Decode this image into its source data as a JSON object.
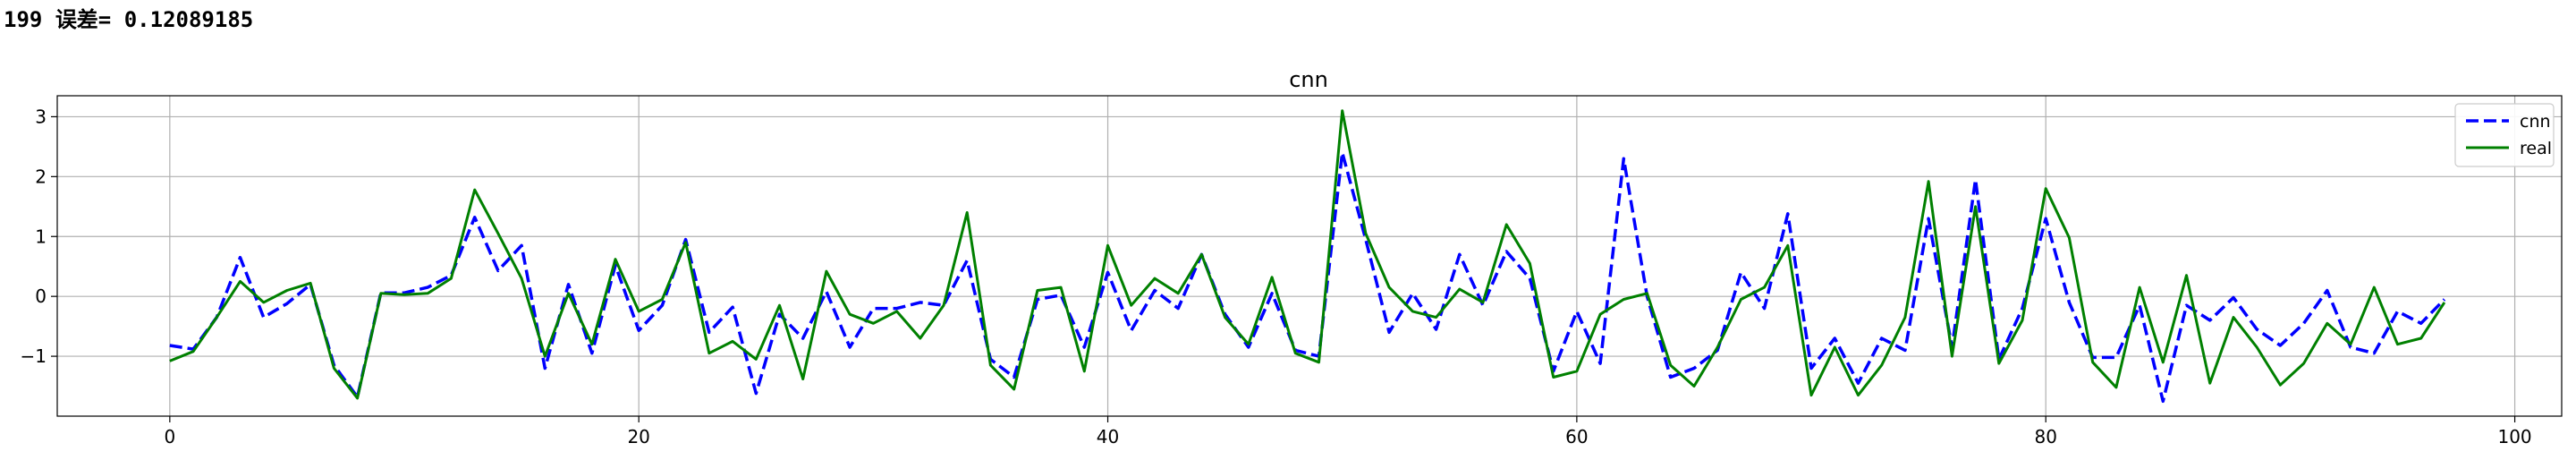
{
  "output": {
    "epoch": "199",
    "label": "误差=",
    "value": "0.12089185"
  },
  "chart_data": {
    "type": "line",
    "title": "cnn",
    "xlabel": "",
    "ylabel": "",
    "xlim": [
      -4.8,
      102
    ],
    "ylim": [
      -2.0,
      3.35
    ],
    "xticks": [
      0,
      20,
      40,
      60,
      80,
      100
    ],
    "yticks": [
      -1,
      0,
      1,
      2,
      3
    ],
    "grid": true,
    "legend_position": "top-right",
    "series": [
      {
        "name": "cnn",
        "color": "#0000ff",
        "style": "dashed",
        "values": [
          -0.82,
          -0.88,
          -0.35,
          0.65,
          -0.35,
          -0.12,
          0.2,
          -1.15,
          -1.68,
          0.06,
          0.06,
          0.15,
          0.35,
          1.32,
          0.43,
          0.85,
          -1.2,
          0.2,
          -0.95,
          0.52,
          -0.57,
          -0.15,
          0.95,
          -0.6,
          -0.18,
          -1.62,
          -0.3,
          -0.7,
          0.08,
          -0.85,
          -0.2,
          -0.2,
          -0.1,
          -0.15,
          0.6,
          -1.05,
          -1.35,
          -0.05,
          0.02,
          -0.85,
          0.4,
          -0.57,
          0.1,
          -0.2,
          0.7,
          -0.3,
          -0.85,
          0.05,
          -0.9,
          -1.0,
          2.4,
          0.95,
          -0.6,
          0.05,
          -0.55,
          0.7,
          -0.15,
          0.75,
          0.3,
          -1.25,
          -0.25,
          -1.12,
          2.3,
          0.0,
          -1.35,
          -1.2,
          -0.9,
          0.4,
          -0.2,
          1.38,
          -1.2,
          -0.7,
          -1.45,
          -0.7,
          -0.9,
          1.3,
          -0.85,
          1.95,
          -1.05,
          -0.2,
          1.3,
          -0.1,
          -1.02,
          -1.02,
          -0.15,
          -1.75,
          -0.15,
          -0.4,
          -0.02,
          -0.55,
          -0.82,
          -0.45,
          0.1,
          -0.85,
          -0.95,
          -0.25,
          -0.45,
          -0.05
        ]
      },
      {
        "name": "real",
        "color": "#008000",
        "style": "solid",
        "values": [
          -1.08,
          -0.92,
          -0.35,
          0.25,
          -0.1,
          0.1,
          0.22,
          -1.2,
          -1.7,
          0.05,
          0.03,
          0.05,
          0.3,
          1.78,
          1.05,
          0.3,
          -1.0,
          0.05,
          -0.8,
          0.62,
          -0.25,
          -0.05,
          0.9,
          -0.95,
          -0.75,
          -1.05,
          -0.15,
          -1.38,
          0.42,
          -0.3,
          -0.45,
          -0.25,
          -0.7,
          -0.15,
          1.4,
          -1.15,
          -1.55,
          0.1,
          0.15,
          -1.25,
          0.85,
          -0.15,
          0.3,
          0.05,
          0.7,
          -0.35,
          -0.8,
          0.32,
          -0.95,
          -1.1,
          3.1,
          1.05,
          0.15,
          -0.25,
          -0.35,
          0.12,
          -0.1,
          1.2,
          0.55,
          -1.35,
          -1.25,
          -0.3,
          -0.05,
          0.05,
          -1.15,
          -1.5,
          -0.85,
          -0.05,
          0.15,
          0.85,
          -1.65,
          -0.85,
          -1.65,
          -1.15,
          -0.35,
          1.92,
          -1.0,
          1.5,
          -1.12,
          -0.4,
          1.8,
          0.98,
          -1.1,
          -1.52,
          0.15,
          -1.1,
          0.35,
          -1.45,
          -0.35,
          -0.85,
          -1.48,
          -1.12,
          -0.45,
          -0.8,
          0.15,
          -0.8,
          -0.7,
          -0.1
        ]
      }
    ]
  }
}
